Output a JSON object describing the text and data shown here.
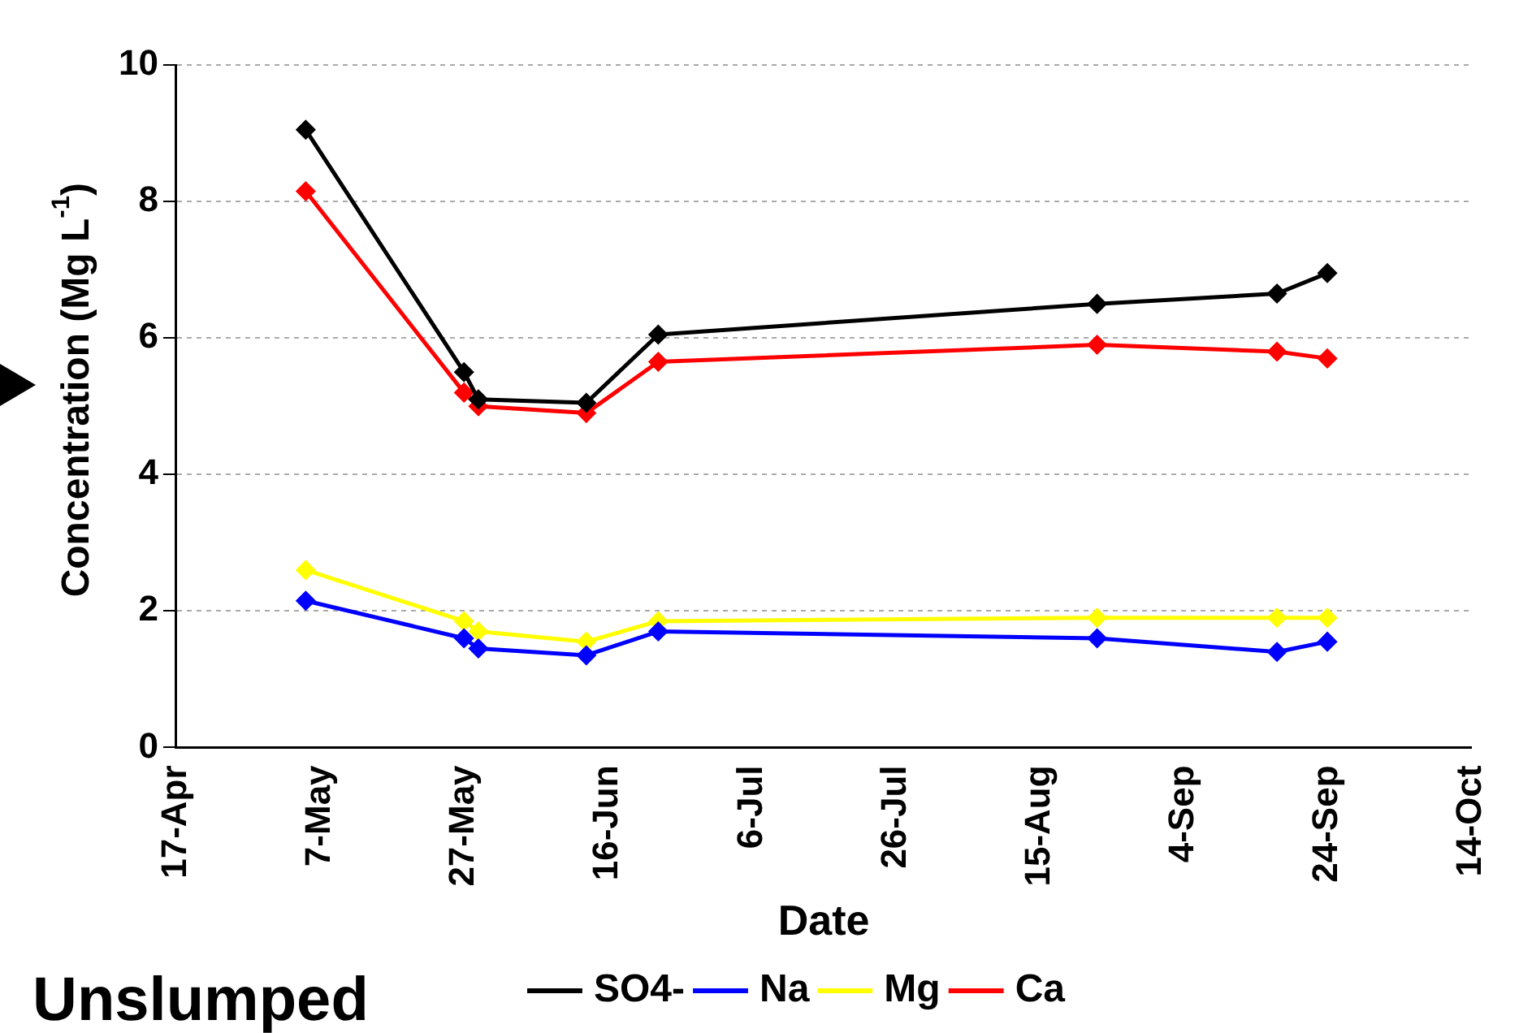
{
  "chart_data": {
    "type": "line",
    "xlabel": "Date",
    "ylabel": "Concentration (Mg L$^{-1}$)",
    "x": [
      "--05-05",
      "--05-27",
      "--05-29",
      "--06-13",
      "--06-23",
      "--08-23",
      "--09-17",
      "--09-24"
    ],
    "series": [
      {
        "name": "SO4-",
        "color": "#000000",
        "values": [
          9.05,
          5.5,
          5.1,
          5.05,
          6.05,
          6.5,
          6.65,
          6.95
        ]
      },
      {
        "name": "Na",
        "color": "#0000ff",
        "values": [
          2.15,
          1.6,
          1.45,
          1.35,
          1.7,
          1.6,
          1.4,
          1.55
        ]
      },
      {
        "name": "Mg",
        "color": "#ffff00",
        "values": [
          2.6,
          1.85,
          1.7,
          1.55,
          1.85,
          1.9,
          1.9,
          1.9
        ]
      },
      {
        "name": "Ca",
        "color": "#ff0000",
        "values": [
          8.15,
          5.2,
          5.0,
          4.9,
          5.65,
          5.9,
          5.8,
          5.7
        ]
      }
    ],
    "xlim": [
      "--04-17",
      "--10-14"
    ],
    "xticks": [
      {
        "value": "--04-17",
        "label": "17-Apr"
      },
      {
        "value": "--05-07",
        "label": "7-May"
      },
      {
        "value": "--05-27",
        "label": "27-May"
      },
      {
        "value": "--06-16",
        "label": "16-Jun"
      },
      {
        "value": "--07-06",
        "label": "6-Jul"
      },
      {
        "value": "--07-26",
        "label": "26-Jul"
      },
      {
        "value": "--08-15",
        "label": "15-Aug"
      },
      {
        "value": "--09-04",
        "label": "4-Sep"
      },
      {
        "value": "--09-24",
        "label": "24-Sep"
      },
      {
        "value": "--10-14",
        "label": "14-Oct"
      }
    ],
    "ylim": [
      0,
      10
    ],
    "yticks": [
      0,
      2,
      4,
      6,
      8,
      10
    ],
    "grid": "y",
    "legend": "bottom",
    "marker": "diamond",
    "line_style": "solid",
    "annotations": [
      "Unslumped"
    ]
  }
}
